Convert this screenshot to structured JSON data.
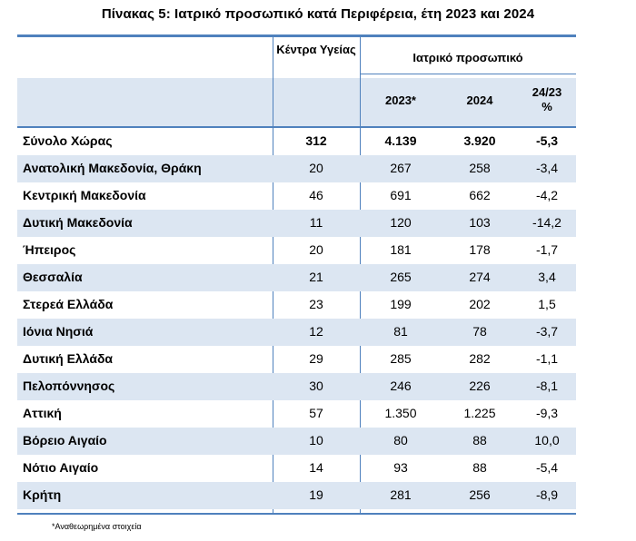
{
  "title": "Πίνακας 5: Ιατρικό προσωπικό κατά Περιφέρεια, έτη 2023 και 2024",
  "header": {
    "col_centers": "Κέντρα Υγείας",
    "col_group": "Ιατρικό προσωπικό",
    "col_2023": "2023*",
    "col_2024": "2024",
    "col_change": "24/23 %"
  },
  "rows": [
    {
      "label": "Σύνολο Χώρας",
      "centers": "312",
      "y2023": "4.139",
      "y2024": "3.920",
      "change": "-5,3"
    },
    {
      "label": "Ανατολική Μακεδονία, Θράκη",
      "centers": "20",
      "y2023": "267",
      "y2024": "258",
      "change": "-3,4"
    },
    {
      "label": "Κεντρική Μακεδονία",
      "centers": "46",
      "y2023": "691",
      "y2024": "662",
      "change": "-4,2"
    },
    {
      "label": "Δυτική Μακεδονία",
      "centers": "11",
      "y2023": "120",
      "y2024": "103",
      "change": "-14,2"
    },
    {
      "label": "Ήπειρος",
      "centers": "20",
      "y2023": "181",
      "y2024": "178",
      "change": "-1,7"
    },
    {
      "label": "Θεσσαλία",
      "centers": "21",
      "y2023": "265",
      "y2024": "274",
      "change": "3,4"
    },
    {
      "label": "Στερεά Ελλάδα",
      "centers": "23",
      "y2023": "199",
      "y2024": "202",
      "change": "1,5"
    },
    {
      "label": "Ιόνια Νησιά",
      "centers": "12",
      "y2023": "81",
      "y2024": "78",
      "change": "-3,7"
    },
    {
      "label": "Δυτική Ελλάδα",
      "centers": "29",
      "y2023": "285",
      "y2024": "282",
      "change": "-1,1"
    },
    {
      "label": "Πελοπόννησος",
      "centers": "30",
      "y2023": "246",
      "y2024": "226",
      "change": "-8,1"
    },
    {
      "label": "Αττική",
      "centers": "57",
      "y2023": "1.350",
      "y2024": "1.225",
      "change": "-9,3"
    },
    {
      "label": "Βόρειο Αιγαίο",
      "centers": "10",
      "y2023": "80",
      "y2024": "88",
      "change": "10,0"
    },
    {
      "label": "Νότιο Αιγαίο",
      "centers": "14",
      "y2023": "93",
      "y2024": "88",
      "change": "-5,4"
    },
    {
      "label": "Κρήτη",
      "centers": "19",
      "y2023": "281",
      "y2024": "256",
      "change": "-8,9"
    }
  ],
  "footnote": "*Αναθεωρημένα στοιχεία",
  "colors": {
    "rule": "#4f81bd",
    "band": "#dce6f2"
  }
}
